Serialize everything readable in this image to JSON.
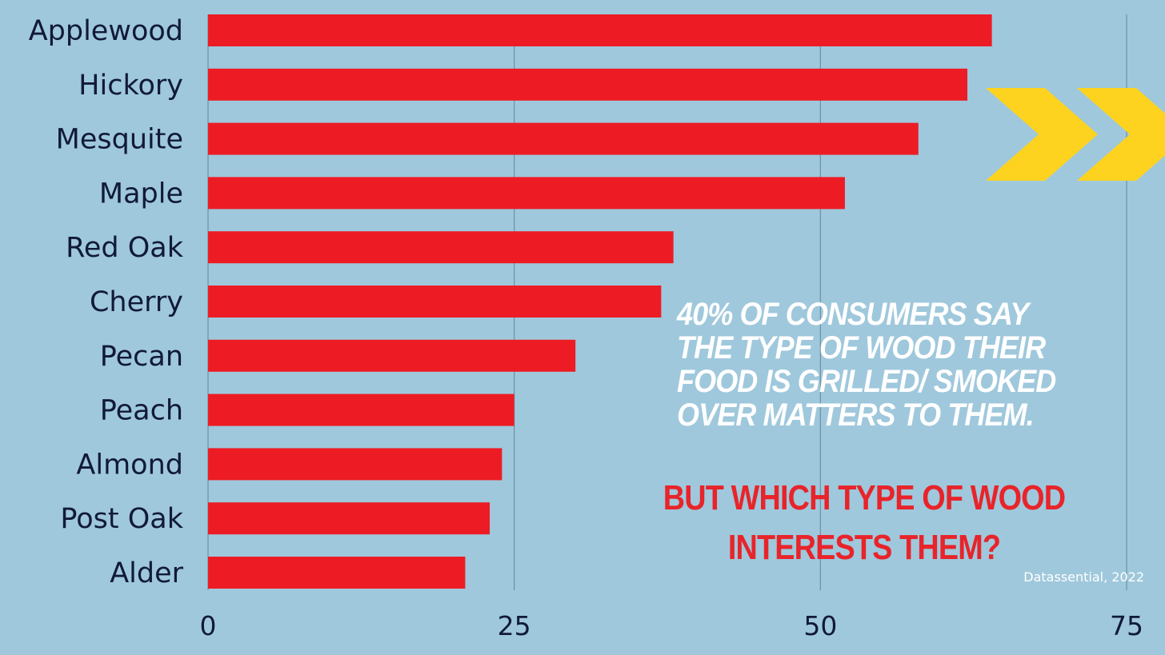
{
  "chart_data": {
    "type": "bar",
    "orientation": "horizontal",
    "categories": [
      "Applewood",
      "Hickory",
      "Mesquite",
      "Maple",
      "Red Oak",
      "Cherry",
      "Pecan",
      "Peach",
      "Almond",
      "Post Oak",
      "Alder"
    ],
    "values": [
      64,
      62,
      58,
      52,
      38,
      37,
      30,
      25,
      24,
      23,
      21
    ],
    "xticks": [
      "0",
      "25",
      "50",
      "75"
    ],
    "xlim": [
      0,
      75
    ],
    "grid": true,
    "bar_color": "#ed1c24"
  },
  "annotations": {
    "headline": "40% of consumers say the type of wood their food is grilled/ smoked over matters to them.",
    "question": "But which type of wood interests them?",
    "source": "Datassential, 2022"
  },
  "colors": {
    "background": "#9fc8dc",
    "bars": "#ed1c24",
    "accent_arrows": "#fdd31f",
    "question_text": "#e8242a",
    "headline_text": "#ffffff"
  },
  "decorations": {
    "icon": "double-chevron-right-icon"
  }
}
